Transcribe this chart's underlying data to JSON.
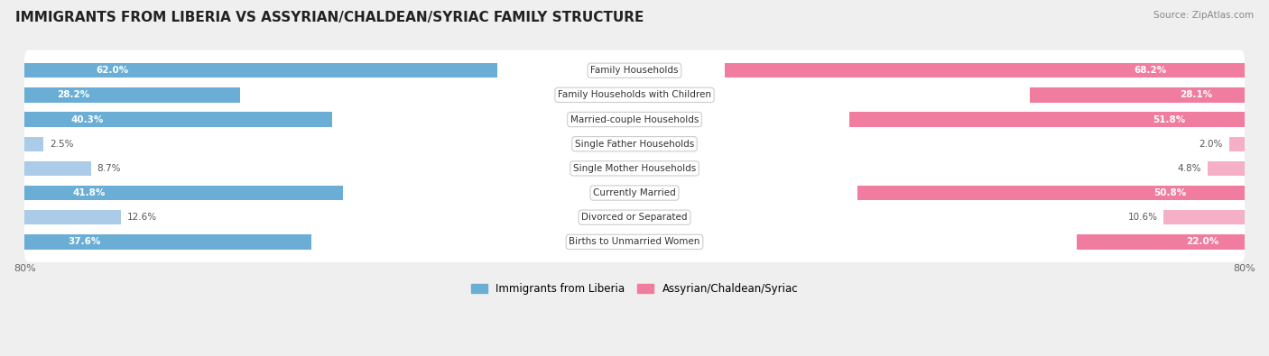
{
  "title": "IMMIGRANTS FROM LIBERIA VS ASSYRIAN/CHALDEAN/SYRIAC FAMILY STRUCTURE",
  "source": "Source: ZipAtlas.com",
  "categories": [
    "Family Households",
    "Family Households with Children",
    "Married-couple Households",
    "Single Father Households",
    "Single Mother Households",
    "Currently Married",
    "Divorced or Separated",
    "Births to Unmarried Women"
  ],
  "liberia_values": [
    62.0,
    28.2,
    40.3,
    2.5,
    8.7,
    41.8,
    12.6,
    37.6
  ],
  "assyrian_values": [
    68.2,
    28.1,
    51.8,
    2.0,
    4.8,
    50.8,
    10.6,
    22.0
  ],
  "max_val": 80.0,
  "liberia_color": "#6aaed6",
  "liberia_color_light": "#aacce8",
  "assyrian_color": "#f07ca0",
  "assyrian_color_light": "#f5b0c8",
  "bg_color": "#efefef",
  "label_inside_threshold": 20.0,
  "white_label_threshold": 20.0
}
